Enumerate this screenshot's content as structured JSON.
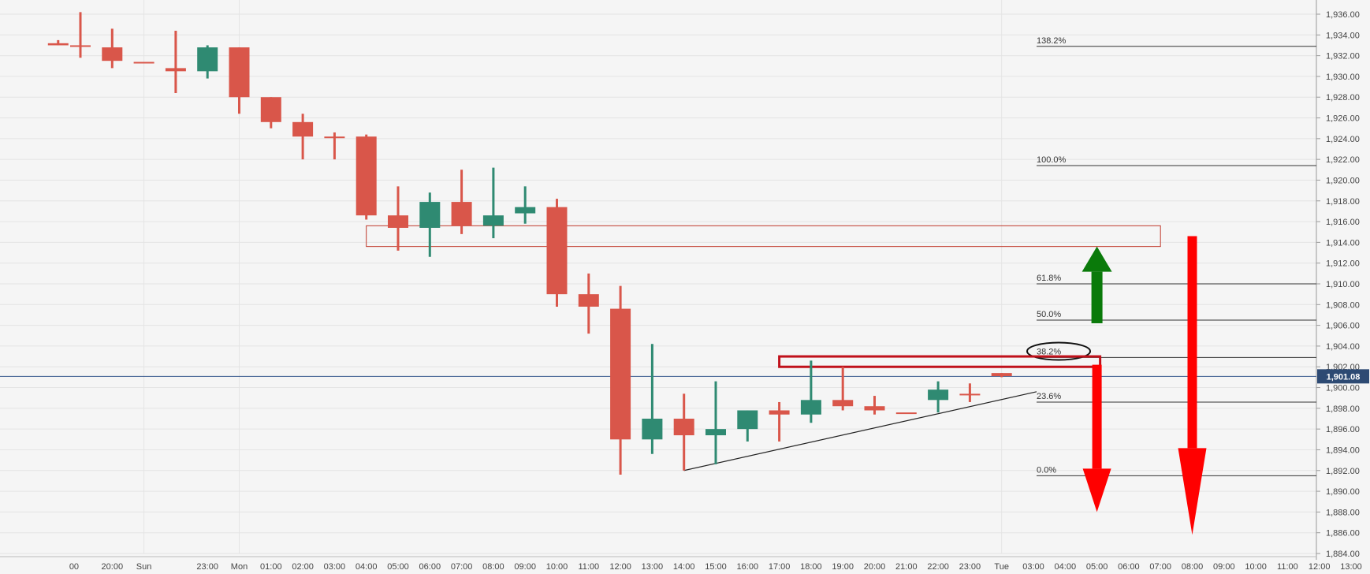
{
  "chart_data": {
    "type": "candlestick",
    "up_color": "#2f8a72",
    "down_color": "#d9564a",
    "background": "#f5f5f5",
    "ylim": [
      1884,
      1937
    ],
    "y_ticks": [
      "1,884.00",
      "1,886.00",
      "1,888.00",
      "1,890.00",
      "1,892.00",
      "1,894.00",
      "1,896.00",
      "1,898.00",
      "1,900.00",
      "1,902.00",
      "1,904.00",
      "1,906.00",
      "1,908.00",
      "1,910.00",
      "1,912.00",
      "1,914.00",
      "1,916.00",
      "1,918.00",
      "1,920.00",
      "1,922.00",
      "1,924.00",
      "1,926.00",
      "1,928.00",
      "1,930.00",
      "1,932.00",
      "1,934.00",
      "1,936.00"
    ],
    "x_labels": [
      {
        "i": -0.2,
        "text": "00"
      },
      {
        "i": 1.0,
        "text": "20:00"
      },
      {
        "i": 2.0,
        "text": "Sun"
      },
      {
        "i": 4.0,
        "text": "23:00"
      },
      {
        "i": 5.0,
        "text": "Mon"
      },
      {
        "i": 6.0,
        "text": "01:00"
      },
      {
        "i": 7.0,
        "text": "02:00"
      },
      {
        "i": 8.0,
        "text": "03:00"
      },
      {
        "i": 9.0,
        "text": "04:00"
      },
      {
        "i": 10.0,
        "text": "05:00"
      },
      {
        "i": 11.0,
        "text": "06:00"
      },
      {
        "i": 12.0,
        "text": "07:00"
      },
      {
        "i": 13.0,
        "text": "08:00"
      },
      {
        "i": 14.0,
        "text": "09:00"
      },
      {
        "i": 15.0,
        "text": "10:00"
      },
      {
        "i": 16.0,
        "text": "11:00"
      },
      {
        "i": 17.0,
        "text": "12:00"
      },
      {
        "i": 18.0,
        "text": "13:00"
      },
      {
        "i": 19.0,
        "text": "14:00"
      },
      {
        "i": 20.0,
        "text": "15:00"
      },
      {
        "i": 21.0,
        "text": "16:00"
      },
      {
        "i": 22.0,
        "text": "17:00"
      },
      {
        "i": 23.0,
        "text": "18:00"
      },
      {
        "i": 24.0,
        "text": "19:00"
      },
      {
        "i": 25.0,
        "text": "20:00"
      },
      {
        "i": 26.0,
        "text": "21:00"
      },
      {
        "i": 27.0,
        "text": "22:00"
      },
      {
        "i": 28.0,
        "text": "23:00"
      },
      {
        "i": 29.0,
        "text": "Tue"
      },
      {
        "i": 30.0,
        "text": "03:00"
      },
      {
        "i": 31.0,
        "text": "04:00"
      },
      {
        "i": 32.0,
        "text": "05:00"
      },
      {
        "i": 33.0,
        "text": "06:00"
      },
      {
        "i": 34.0,
        "text": "07:00"
      },
      {
        "i": 35.0,
        "text": "08:00"
      },
      {
        "i": 36.0,
        "text": "09:00"
      },
      {
        "i": 37.0,
        "text": "10:00"
      },
      {
        "i": 38.0,
        "text": "11:00"
      },
      {
        "i": 39.0,
        "text": "12:00"
      },
      {
        "i": 40.0,
        "text": "13:00"
      }
    ],
    "candles": [
      {
        "i": -0.7,
        "o": 1933.2,
        "h": 1933.5,
        "l": 1933.0,
        "c": 1933.0
      },
      {
        "i": 0.0,
        "o": 1933.0,
        "h": 1936.2,
        "l": 1931.8,
        "c": 1933.0
      },
      {
        "i": 1.0,
        "o": 1932.8,
        "h": 1934.6,
        "l": 1930.8,
        "c": 1931.5
      },
      {
        "i": 2.0,
        "o": 1931.4,
        "h": 1931.4,
        "l": 1931.4,
        "c": 1931.4
      },
      {
        "i": 3.0,
        "o": 1930.8,
        "h": 1934.4,
        "l": 1928.4,
        "c": 1930.5
      },
      {
        "i": 4.0,
        "o": 1930.5,
        "h": 1933.0,
        "l": 1929.8,
        "c": 1932.8
      },
      {
        "i": 5.0,
        "o": 1932.8,
        "h": 1932.8,
        "l": 1926.4,
        "c": 1928.0
      },
      {
        "i": 6.0,
        "o": 1928.0,
        "h": 1928.0,
        "l": 1925.0,
        "c": 1925.6
      },
      {
        "i": 7.0,
        "o": 1925.6,
        "h": 1926.4,
        "l": 1922.0,
        "c": 1924.2
      },
      {
        "i": 8.0,
        "o": 1924.2,
        "h": 1924.6,
        "l": 1922.0,
        "c": 1924.2
      },
      {
        "i": 9.0,
        "o": 1924.2,
        "h": 1924.4,
        "l": 1916.2,
        "c": 1916.6
      },
      {
        "i": 10.0,
        "o": 1916.6,
        "h": 1919.4,
        "l": 1913.2,
        "c": 1915.4
      },
      {
        "i": 11.0,
        "o": 1915.4,
        "h": 1918.8,
        "l": 1912.6,
        "c": 1917.9
      },
      {
        "i": 12.0,
        "o": 1917.9,
        "h": 1921.0,
        "l": 1914.8,
        "c": 1915.6
      },
      {
        "i": 13.0,
        "o": 1915.6,
        "h": 1921.2,
        "l": 1914.4,
        "c": 1916.6
      },
      {
        "i": 14.0,
        "o": 1916.8,
        "h": 1919.4,
        "l": 1915.8,
        "c": 1917.4
      },
      {
        "i": 15.0,
        "o": 1917.4,
        "h": 1918.2,
        "l": 1907.8,
        "c": 1909.0
      },
      {
        "i": 16.0,
        "o": 1909.0,
        "h": 1911.0,
        "l": 1905.2,
        "c": 1907.8
      },
      {
        "i": 17.0,
        "o": 1907.6,
        "h": 1909.8,
        "l": 1891.6,
        "c": 1895.0
      },
      {
        "i": 18.0,
        "o": 1895.0,
        "h": 1904.2,
        "l": 1893.6,
        "c": 1897.0
      },
      {
        "i": 19.0,
        "o": 1897.0,
        "h": 1899.4,
        "l": 1892.0,
        "c": 1895.4
      },
      {
        "i": 20.0,
        "o": 1895.4,
        "h": 1900.6,
        "l": 1892.6,
        "c": 1896.0
      },
      {
        "i": 21.0,
        "o": 1896.0,
        "h": 1897.8,
        "l": 1894.8,
        "c": 1897.8
      },
      {
        "i": 22.0,
        "o": 1897.8,
        "h": 1898.6,
        "l": 1894.8,
        "c": 1897.4
      },
      {
        "i": 23.0,
        "o": 1897.4,
        "h": 1902.6,
        "l": 1896.6,
        "c": 1898.8
      },
      {
        "i": 24.0,
        "o": 1898.8,
        "h": 1902.0,
        "l": 1897.8,
        "c": 1898.2
      },
      {
        "i": 25.0,
        "o": 1898.2,
        "h": 1899.2,
        "l": 1897.4,
        "c": 1897.8
      },
      {
        "i": 26.0,
        "o": 1897.6,
        "h": 1897.6,
        "l": 1897.6,
        "c": 1897.6
      },
      {
        "i": 27.0,
        "o": 1898.8,
        "h": 1900.6,
        "l": 1897.6,
        "c": 1899.8
      },
      {
        "i": 28.0,
        "o": 1899.4,
        "h": 1900.4,
        "l": 1898.6,
        "c": 1899.4
      },
      {
        "i": 29.0,
        "o": 1901.4,
        "h": 1901.4,
        "l": 1901.0,
        "c": 1901.1
      }
    ],
    "current_price": 1901.08,
    "current_price_label": "1,901.08",
    "fib_levels": [
      {
        "label": "138.2%",
        "price": 1932.9
      },
      {
        "label": "100.0%",
        "price": 1921.4
      },
      {
        "label": "61.8%",
        "price": 1910.0
      },
      {
        "label": "50.0%",
        "price": 1906.5
      },
      {
        "label": "38.2%",
        "price": 1902.9
      },
      {
        "label": "23.6%",
        "price": 1898.6
      },
      {
        "label": "0.0%",
        "price": 1891.5
      }
    ],
    "fib_x_start": 30.1,
    "resistance_zone": {
      "i1": 9.0,
      "i2": 34.0,
      "p1": 1915.6,
      "p2": 1913.6
    },
    "small_zone": {
      "i1": 22.0,
      "i2": 32.1,
      "p1": 1903.0,
      "p2": 1902.0
    },
    "trendline": {
      "i1": 19.0,
      "p1": 1892.0,
      "i2": 30.1,
      "p2": 1899.6
    },
    "ellipse": {
      "i": 30.1,
      "price": 1903.5
    },
    "arrows": [
      {
        "dir": "up",
        "color": "#0a7a0a",
        "i": 32.0,
        "from": 1906.2,
        "to": 1913.6
      },
      {
        "dir": "down",
        "color": "#ff0000",
        "i": 32.0,
        "from": 1902.2,
        "to": 1888.0
      },
      {
        "dir": "down",
        "color": "#ff0000",
        "i": 35.0,
        "from": 1914.6,
        "to": 1885.8
      }
    ]
  }
}
